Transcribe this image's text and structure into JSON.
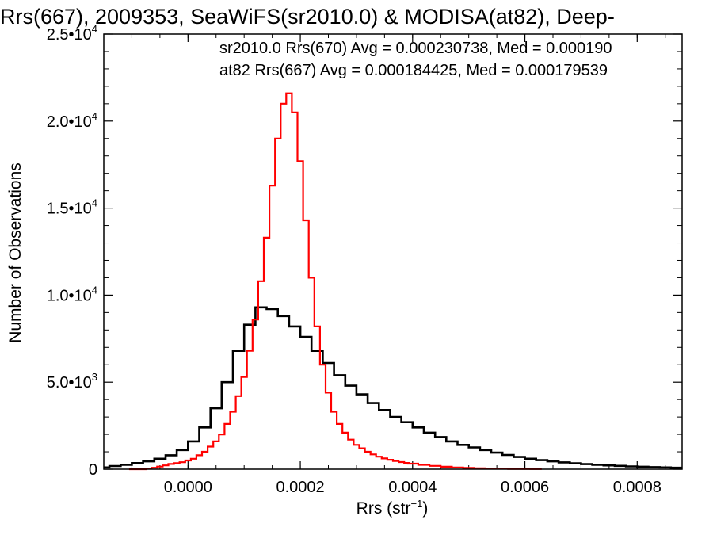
{
  "chart_data": {
    "type": "histogram",
    "title": "Rrs(667), 2009353, SeaWiFS(sr2010.0) & MODISA(at82), Deep-",
    "xlabel": "Rrs (str",
    "xlabel_sup": "−1",
    "xlabel_close": ")",
    "ylabel": "Number of Observations",
    "xlim": [
      -0.00015,
      0.00088
    ],
    "ylim": [
      0,
      25000
    ],
    "xticks": [
      {
        "value": 0.0,
        "label": "0.0000"
      },
      {
        "value": 0.0002,
        "label": "0.0002"
      },
      {
        "value": 0.0004,
        "label": "0.0004"
      },
      {
        "value": 0.0006,
        "label": "0.0006"
      },
      {
        "value": 0.0008,
        "label": "0.0008"
      }
    ],
    "yticks": [
      {
        "value": 0,
        "mant": "0",
        "exp": ""
      },
      {
        "value": 5000,
        "mant": "5.0•10",
        "exp": "3"
      },
      {
        "value": 10000,
        "mant": "1.0•10",
        "exp": "4"
      },
      {
        "value": 15000,
        "mant": "1.5•10",
        "exp": "4"
      },
      {
        "value": 20000,
        "mant": "2.0•10",
        "exp": "4"
      },
      {
        "value": 25000,
        "mant": "2.5•10",
        "exp": "4"
      }
    ],
    "series": [
      {
        "legend": "sr2010.0 Rrs(670) Avg = 0.000230738, Med = 0.000190",
        "color": "#000000",
        "x": [
          -0.00015,
          -0.00013,
          -0.00011,
          -9e-05,
          -7e-05,
          -5e-05,
          -3e-05,
          -1e-05,
          1e-05,
          3e-05,
          5e-05,
          7e-05,
          9e-05,
          0.00011,
          0.00013,
          0.00015,
          0.00017,
          0.00019,
          0.00021,
          0.00023,
          0.00025,
          0.00027,
          0.00029,
          0.00031,
          0.00033,
          0.00035,
          0.00037,
          0.00039,
          0.00041,
          0.00043,
          0.00045,
          0.00047,
          0.00049,
          0.00051,
          0.00053,
          0.00055,
          0.00057,
          0.00059,
          0.00061,
          0.00063,
          0.00065,
          0.00067,
          0.00069,
          0.00071,
          0.00073,
          0.00075,
          0.00077,
          0.00079,
          0.00081,
          0.00083,
          0.00085,
          0.00087
        ],
        "y": [
          100,
          180,
          250,
          350,
          450,
          600,
          800,
          1100,
          1600,
          2400,
          3500,
          5000,
          6800,
          8300,
          9300,
          9200,
          8800,
          8200,
          7600,
          6800,
          6100,
          5400,
          4800,
          4300,
          3800,
          3400,
          3000,
          2700,
          2400,
          2100,
          1850,
          1600,
          1400,
          1250,
          1100,
          950,
          820,
          700,
          600,
          520,
          450,
          390,
          340,
          290,
          250,
          220,
          190,
          160,
          140,
          120,
          100,
          80
        ]
      },
      {
        "legend": "at82 Rrs(667) Avg = 0.000184425, Med = 0.000179539",
        "color": "#ff0000",
        "x": [
          -0.0001,
          -9e-05,
          -8e-05,
          -7e-05,
          -6e-05,
          -5e-05,
          -4e-05,
          -3e-05,
          -2e-05,
          -1e-05,
          0.0,
          1e-05,
          2e-05,
          3e-05,
          4e-05,
          5e-05,
          6e-05,
          7e-05,
          8e-05,
          9e-05,
          0.0001,
          0.00011,
          0.00012,
          0.00013,
          0.00014,
          0.00015,
          0.00016,
          0.00017,
          0.00018,
          0.00019,
          0.0002,
          0.00021,
          0.00022,
          0.00023,
          0.00024,
          0.00025,
          0.00026,
          0.00027,
          0.00028,
          0.00029,
          0.0003,
          0.00031,
          0.00032,
          0.00033,
          0.00034,
          0.00035,
          0.00036,
          0.00037,
          0.00038,
          0.00039,
          0.0004,
          0.00042,
          0.00044,
          0.00046,
          0.00048,
          0.0005,
          0.00052,
          0.00054,
          0.00056,
          0.00058,
          0.0006,
          0.00062
        ],
        "y": [
          0,
          0,
          0,
          30,
          80,
          150,
          220,
          300,
          350,
          400,
          500,
          600,
          800,
          1000,
          1300,
          1600,
          2000,
          2600,
          3300,
          4200,
          5300,
          6800,
          8600,
          10800,
          13300,
          16300,
          19000,
          21000,
          21600,
          20500,
          17700,
          14300,
          11000,
          8200,
          6000,
          4400,
          3300,
          2600,
          2100,
          1700,
          1400,
          1200,
          1000,
          850,
          720,
          620,
          540,
          470,
          410,
          360,
          320,
          250,
          190,
          140,
          100,
          75,
          55,
          40,
          30,
          20,
          15,
          10
        ]
      }
    ]
  }
}
